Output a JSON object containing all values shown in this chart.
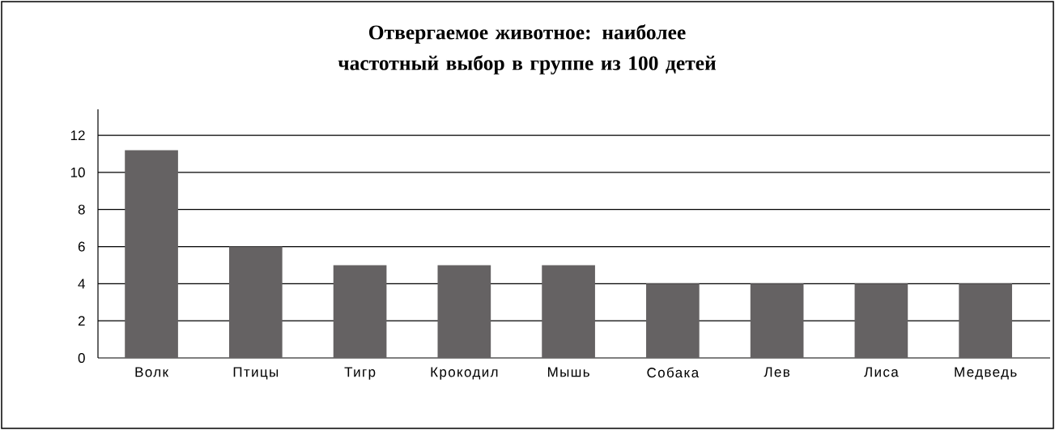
{
  "chart_data": {
    "type": "bar",
    "title": "Отвергаемое животное: наиболее частотный выбор в группе из 100 детей",
    "categories": [
      "Волк",
      "Птицы",
      "Тигр",
      "Крокодил",
      "Мышь",
      "Собака",
      "Лев",
      "Лиса",
      "Медведь"
    ],
    "values": [
      11.2,
      6,
      5,
      5,
      5,
      4,
      4,
      4,
      4
    ],
    "color": "#656263",
    "ylim": [
      0,
      13.4
    ],
    "yticks": [
      0,
      2,
      4,
      6,
      8,
      10,
      12
    ],
    "grid": "y"
  }
}
